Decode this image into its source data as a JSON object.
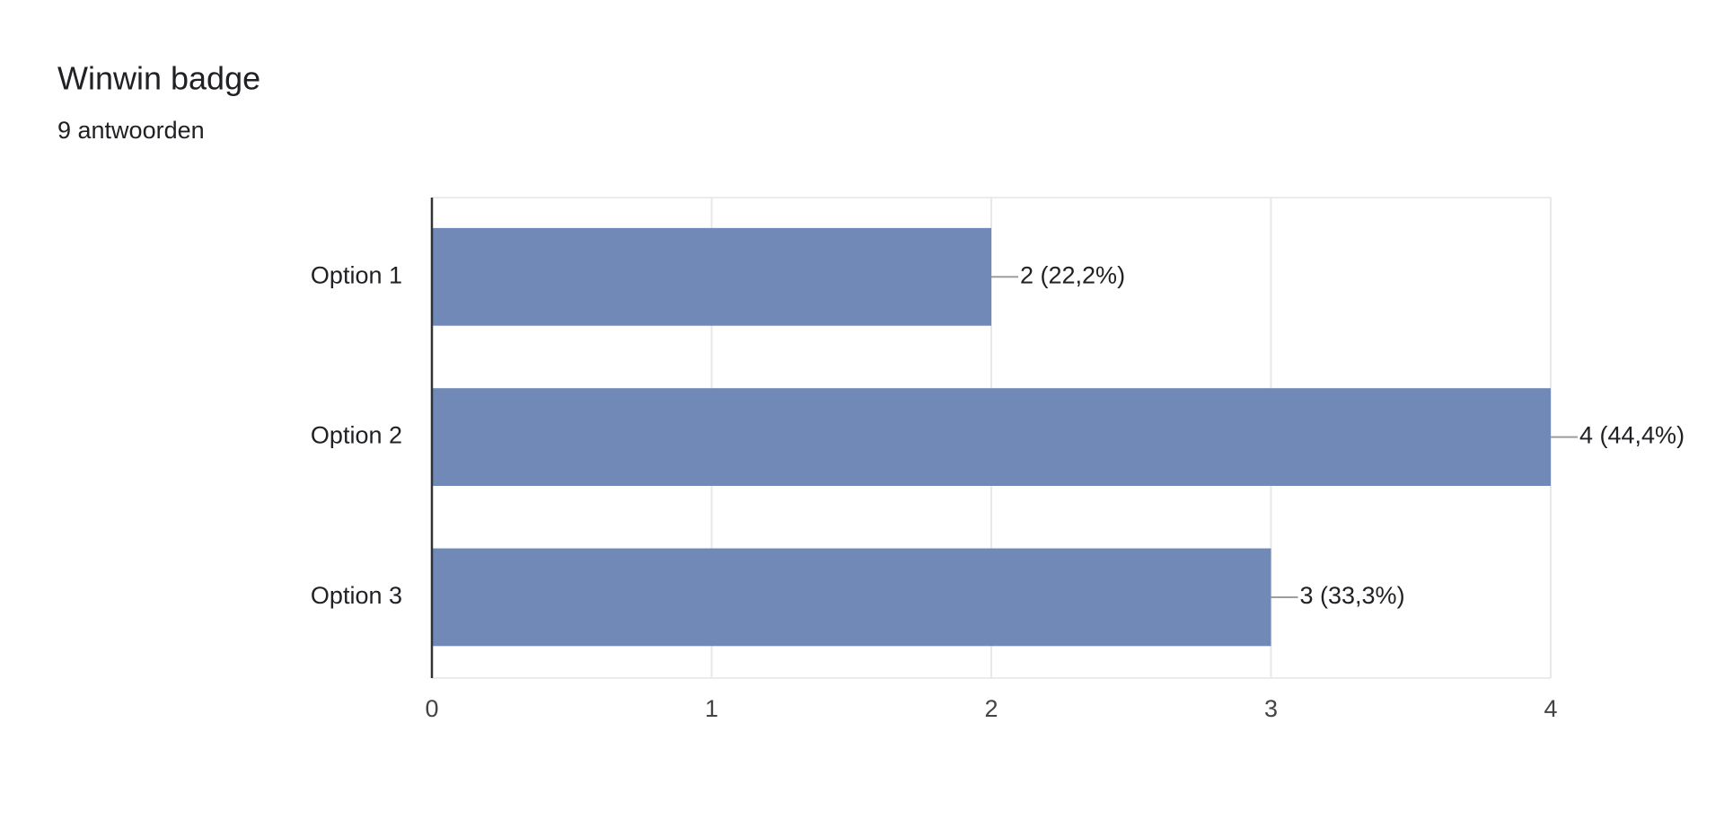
{
  "chart_data": {
    "type": "bar",
    "orientation": "horizontal",
    "title": "Winwin badge",
    "subtitle": "9 antwoorden",
    "categories": [
      "Option 1",
      "Option 2",
      "Option 3"
    ],
    "values": [
      2,
      4,
      3
    ],
    "value_labels": [
      "2 (22,2%)",
      "4 (44,4%)",
      "3 (33,3%)"
    ],
    "color": "#7089b7",
    "xlim": [
      0,
      4
    ],
    "xticks": [
      0,
      1,
      2,
      3,
      4
    ],
    "grid": true
  }
}
